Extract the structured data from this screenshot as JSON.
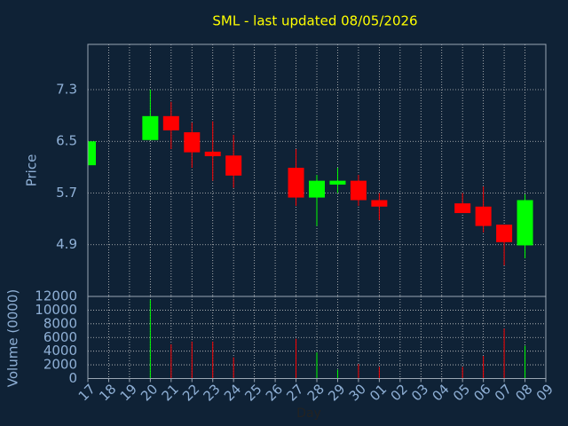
{
  "chart_data": {
    "type": "candlestick",
    "title": "SML - last updated 08/05/2026",
    "ylabel": "Price",
    "xlabel": "Day",
    "volume_label": "Volume (0000)",
    "categories": [
      "17",
      "18",
      "19",
      "20",
      "21",
      "22",
      "23",
      "24",
      "25",
      "26",
      "27",
      "28",
      "29",
      "30",
      "01",
      "02",
      "03",
      "04",
      "05",
      "06",
      "07",
      "08",
      "09"
    ],
    "open": [
      6.13,
      null,
      null,
      6.52,
      6.89,
      6.64,
      6.34,
      6.28,
      null,
      null,
      6.09,
      5.63,
      5.83,
      5.89,
      5.59,
      null,
      null,
      null,
      5.54,
      5.49,
      5.21,
      4.89,
      null
    ],
    "high": [
      6.5,
      null,
      null,
      7.3,
      7.11,
      6.79,
      6.81,
      6.6,
      null,
      null,
      6.38,
      5.98,
      6.09,
      5.98,
      5.7,
      null,
      null,
      null,
      5.7,
      5.8,
      5.21,
      5.68,
      null
    ],
    "low": [
      6.13,
      null,
      null,
      6.52,
      6.38,
      6.09,
      5.89,
      5.78,
      null,
      null,
      5.5,
      5.19,
      5.7,
      5.5,
      5.28,
      null,
      null,
      null,
      5.39,
      5.09,
      4.58,
      4.69,
      null
    ],
    "close": [
      6.5,
      null,
      null,
      6.89,
      6.67,
      6.33,
      6.27,
      5.97,
      null,
      null,
      5.63,
      5.89,
      5.89,
      5.59,
      5.49,
      null,
      null,
      null,
      5.39,
      5.19,
      4.94,
      5.59,
      null
    ],
    "volume": [
      null,
      null,
      null,
      11500,
      5000,
      5400,
      5400,
      3100,
      null,
      null,
      5800,
      3800,
      1300,
      2100,
      1700,
      null,
      null,
      null,
      1700,
      3300,
      7300,
      4800,
      null
    ],
    "up_color": "#00ff00",
    "down_color": "#ff0000",
    "ylim": [
      4.1,
      8.0
    ],
    "yticks": [
      4.9,
      5.7,
      6.5,
      7.3
    ],
    "volume_ylim": [
      0,
      12000
    ],
    "volume_yticks": [
      0,
      2000,
      4000,
      6000,
      8000,
      10000,
      12000
    ],
    "grid": true
  }
}
